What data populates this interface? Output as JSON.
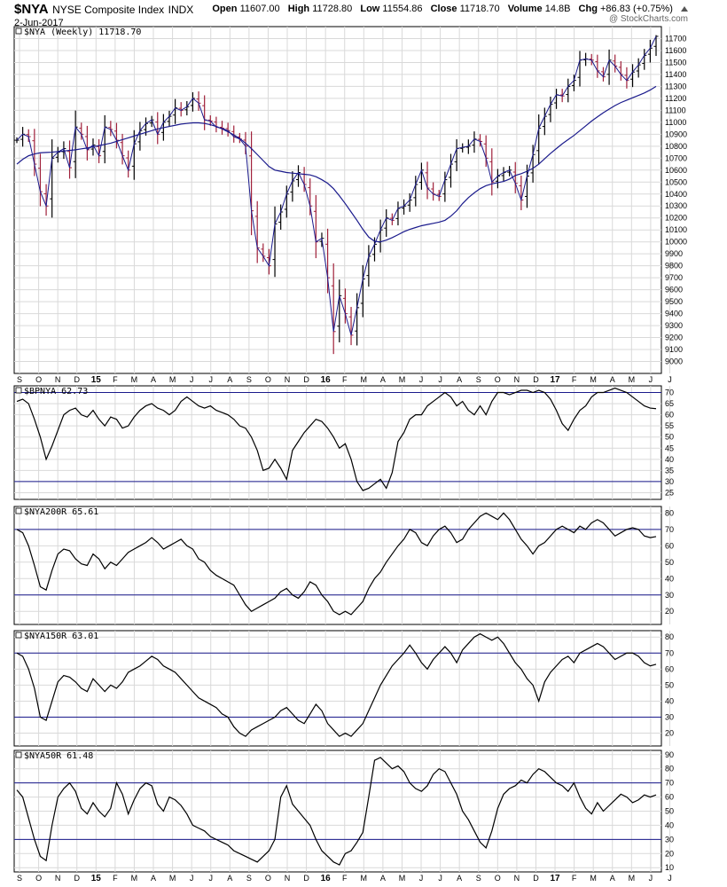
{
  "header": {
    "symbol": "$NYA",
    "description": "NYSE Composite Index",
    "exchange": "INDX",
    "date": "2-Jun-2017",
    "credit": "@ StockCharts.com",
    "open_label": "Open",
    "open": "11607.00",
    "high_label": "High",
    "high": "11728.80",
    "low_label": "Low",
    "low": "11554.86",
    "close_label": "Close",
    "close": "11718.70",
    "volume_label": "Volume",
    "volume": "14.8B",
    "chg_label": "Chg",
    "chg": "+86.83 (+0.75%)",
    "chg_icon": "up-triangle-icon"
  },
  "colors": {
    "up": "#000000",
    "down": "#a0203a",
    "ma": "#1a1a8c",
    "ref": "#1a1a8c",
    "grid": "#d9d9d9"
  },
  "months": [
    "S",
    "O",
    "N",
    "D",
    "15",
    "F",
    "M",
    "A",
    "M",
    "J",
    "J",
    "A",
    "S",
    "O",
    "N",
    "D",
    "16",
    "F",
    "M",
    "A",
    "M",
    "J",
    "J",
    "A",
    "S",
    "O",
    "N",
    "D",
    "17",
    "F",
    "M",
    "A",
    "M",
    "J",
    "J"
  ],
  "chart_data": [
    {
      "id": "nya",
      "type": "ohlc",
      "title": "$NYA (Weekly) 11718.70",
      "ylim": [
        8900,
        11800
      ],
      "yticks": [
        9000,
        9100,
        9200,
        9300,
        9400,
        9500,
        9600,
        9700,
        9800,
        9900,
        10000,
        10100,
        10200,
        10300,
        10400,
        10500,
        10600,
        10700,
        10800,
        10900,
        11000,
        11100,
        11200,
        11300,
        11400,
        11500,
        11600,
        11700
      ],
      "close": [
        10850,
        10900,
        10880,
        10650,
        10420,
        10300,
        10700,
        10750,
        10780,
        10620,
        10960,
        10900,
        10770,
        10810,
        10720,
        10960,
        10940,
        10850,
        10720,
        10600,
        10820,
        10930,
        10990,
        11020,
        10900,
        11000,
        11050,
        11120,
        11100,
        11130,
        11200,
        11160,
        11020,
        11010,
        10960,
        10950,
        10930,
        10880,
        10860,
        10800,
        10260,
        9950,
        9880,
        9800,
        10150,
        10250,
        10400,
        10510,
        10580,
        10480,
        10300,
        10000,
        10030,
        9700,
        9250,
        9550,
        9400,
        9220,
        9450,
        9690,
        9880,
        9980,
        10100,
        10200,
        10180,
        10280,
        10300,
        10350,
        10480,
        10600,
        10450,
        10400,
        10380,
        10520,
        10650,
        10780,
        10790,
        10800,
        10860,
        10840,
        10700,
        10500,
        10550,
        10580,
        10600,
        10490,
        10350,
        10550,
        10730,
        10950,
        11050,
        11150,
        11230,
        11220,
        11300,
        11350,
        11520,
        11530,
        11520,
        11430,
        11380,
        11520,
        11470,
        11400,
        11350,
        11420,
        11480,
        11560,
        11620,
        11718.7
      ],
      "ma": [
        10650,
        10690,
        10720,
        10735,
        10745,
        10748,
        10750,
        10755,
        10760,
        10765,
        10770,
        10778,
        10785,
        10795,
        10805,
        10815,
        10825,
        10840,
        10855,
        10870,
        10885,
        10900,
        10915,
        10930,
        10945,
        10955,
        10965,
        10975,
        10985,
        10990,
        10995,
        10995,
        10990,
        10980,
        10965,
        10945,
        10920,
        10895,
        10865,
        10825,
        10780,
        10730,
        10680,
        10630,
        10600,
        10590,
        10580,
        10575,
        10570,
        10565,
        10560,
        10545,
        10520,
        10490,
        10445,
        10385,
        10320,
        10250,
        10180,
        10105,
        10040,
        10005,
        10000,
        10015,
        10035,
        10060,
        10085,
        10105,
        10120,
        10135,
        10145,
        10155,
        10165,
        10180,
        10215,
        10260,
        10320,
        10370,
        10410,
        10445,
        10470,
        10485,
        10495,
        10505,
        10525,
        10555,
        10570,
        10590,
        10615,
        10650,
        10695,
        10740,
        10780,
        10820,
        10855,
        10890,
        10930,
        10970,
        11010,
        11045,
        11080,
        11110,
        11140,
        11165,
        11185,
        11205,
        11225,
        11245,
        11270,
        11300
      ]
    },
    {
      "id": "bpnya",
      "type": "line",
      "title": "$BPNYA 62.73",
      "ylim": [
        22,
        73
      ],
      "yticks": [
        25,
        30,
        35,
        40,
        45,
        50,
        55,
        60,
        65,
        70
      ],
      "ref_lines": [
        70,
        30
      ],
      "values": [
        66,
        67,
        65,
        58,
        50,
        40,
        46,
        53,
        60,
        62,
        63,
        60,
        59,
        62,
        58,
        55,
        59,
        58,
        54,
        55,
        59,
        62,
        64,
        65,
        63,
        62,
        60,
        62,
        66,
        68,
        66,
        64,
        63,
        64,
        62,
        61,
        60,
        58,
        55,
        54,
        50,
        44,
        35,
        36,
        40,
        36,
        31,
        44,
        48,
        52,
        55,
        58,
        57,
        54,
        50,
        45,
        47,
        40,
        30,
        26,
        27,
        29,
        31,
        27,
        34,
        48,
        52,
        58,
        60,
        60,
        64,
        66,
        68,
        70,
        68,
        64,
        66,
        62,
        60,
        64,
        60,
        66,
        70,
        70,
        69,
        70,
        71,
        71,
        70,
        71,
        70,
        67,
        62,
        56,
        53,
        58,
        62,
        64,
        68,
        70,
        70,
        71,
        72,
        71,
        70,
        68,
        66,
        64,
        63,
        62.73
      ]
    },
    {
      "id": "nya200r",
      "type": "line",
      "title": "$NYA200R 65.61",
      "ylim": [
        12,
        84
      ],
      "yticks": [
        20,
        30,
        40,
        50,
        60,
        70,
        80
      ],
      "ref_lines": [
        70,
        30
      ],
      "values": [
        70,
        68,
        60,
        48,
        35,
        33,
        45,
        55,
        58,
        57,
        52,
        49,
        48,
        55,
        52,
        46,
        50,
        48,
        52,
        56,
        58,
        60,
        62,
        65,
        62,
        58,
        60,
        62,
        64,
        60,
        58,
        52,
        50,
        45,
        42,
        40,
        38,
        36,
        30,
        24,
        20,
        22,
        24,
        26,
        28,
        32,
        34,
        30,
        28,
        32,
        38,
        36,
        30,
        26,
        20,
        18,
        20,
        18,
        22,
        26,
        34,
        40,
        44,
        50,
        55,
        60,
        64,
        70,
        68,
        62,
        60,
        66,
        70,
        72,
        68,
        62,
        64,
        70,
        74,
        78,
        80,
        78,
        76,
        80,
        76,
        70,
        64,
        60,
        55,
        60,
        62,
        66,
        70,
        72,
        70,
        68,
        72,
        70,
        74,
        76,
        74,
        70,
        66,
        68,
        70,
        71,
        70,
        66,
        65,
        65.61
      ]
    },
    {
      "id": "nya150r",
      "type": "line",
      "title": "$NYA150R 63.01",
      "ylim": [
        12,
        84
      ],
      "yticks": [
        20,
        30,
        40,
        50,
        60,
        70,
        80
      ],
      "ref_lines": [
        70,
        30
      ],
      "values": [
        70,
        68,
        60,
        48,
        30,
        28,
        40,
        52,
        56,
        55,
        52,
        48,
        46,
        54,
        50,
        46,
        50,
        48,
        52,
        58,
        60,
        62,
        65,
        68,
        66,
        62,
        60,
        58,
        54,
        50,
        46,
        42,
        40,
        38,
        36,
        32,
        30,
        24,
        20,
        18,
        22,
        24,
        26,
        28,
        30,
        34,
        36,
        32,
        28,
        26,
        32,
        38,
        34,
        26,
        22,
        18,
        20,
        18,
        22,
        26,
        34,
        42,
        50,
        56,
        62,
        66,
        70,
        75,
        70,
        64,
        60,
        66,
        70,
        74,
        70,
        64,
        72,
        76,
        80,
        82,
        80,
        78,
        80,
        76,
        70,
        64,
        60,
        54,
        50,
        40,
        52,
        58,
        62,
        66,
        68,
        64,
        70,
        72,
        74,
        76,
        74,
        70,
        66,
        68,
        70,
        70,
        68,
        64,
        62,
        63.01
      ]
    },
    {
      "id": "nya50r",
      "type": "line",
      "title": "$NYA50R 61.48",
      "ylim": [
        7,
        93
      ],
      "yticks": [
        10,
        20,
        30,
        40,
        50,
        60,
        70,
        80,
        90
      ],
      "ref_lines": [
        70,
        30
      ],
      "values": [
        65,
        60,
        45,
        30,
        18,
        15,
        40,
        60,
        66,
        70,
        64,
        52,
        48,
        56,
        50,
        46,
        52,
        70,
        62,
        48,
        58,
        66,
        70,
        68,
        55,
        50,
        60,
        58,
        54,
        48,
        40,
        38,
        36,
        32,
        30,
        28,
        26,
        22,
        20,
        18,
        16,
        14,
        18,
        22,
        30,
        60,
        68,
        55,
        50,
        45,
        40,
        30,
        22,
        18,
        14,
        12,
        20,
        22,
        28,
        35,
        60,
        86,
        88,
        84,
        80,
        82,
        78,
        70,
        66,
        64,
        68,
        76,
        80,
        78,
        70,
        62,
        50,
        44,
        36,
        28,
        24,
        36,
        52,
        62,
        66,
        68,
        72,
        70,
        76,
        80,
        78,
        74,
        70,
        68,
        64,
        70,
        60,
        52,
        48,
        56,
        50,
        54,
        58,
        62,
        60,
        56,
        58,
        61.48,
        60,
        61.48
      ]
    }
  ]
}
